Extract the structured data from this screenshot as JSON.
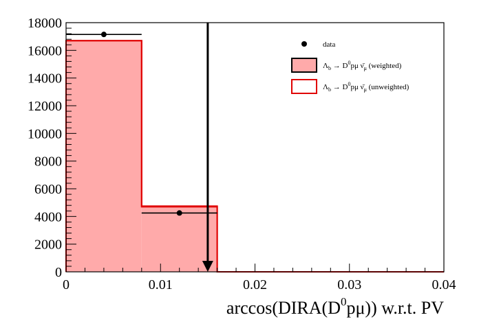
{
  "chart_data": {
    "type": "bar",
    "title": "",
    "xlabel": {
      "main": "arccos(DIRA(D",
      "sup": "0",
      "tail": "pμ)) w.r.t. PV"
    },
    "ylabel": "",
    "xlim": [
      0,
      0.04
    ],
    "ylim": [
      0,
      18000
    ],
    "x_ticks": [
      {
        "value": 0,
        "label": "0"
      },
      {
        "value": 0.01,
        "label": "0.01"
      },
      {
        "value": 0.02,
        "label": "0.02"
      },
      {
        "value": 0.03,
        "label": "0.03"
      },
      {
        "value": 0.04,
        "label": "0.04"
      }
    ],
    "y_ticks": [
      {
        "value": 0,
        "label": "0"
      },
      {
        "value": 2000,
        "label": "2000"
      },
      {
        "value": 4000,
        "label": "4000"
      },
      {
        "value": 6000,
        "label": "6000"
      },
      {
        "value": 8000,
        "label": "8000"
      },
      {
        "value": 10000,
        "label": "10000"
      },
      {
        "value": 12000,
        "label": "12000"
      },
      {
        "value": 14000,
        "label": "14000"
      },
      {
        "value": 16000,
        "label": "16000"
      },
      {
        "value": 18000,
        "label": "18000"
      }
    ],
    "bin_edges": [
      0,
      0.008,
      0.016,
      0.024,
      0.032,
      0.04
    ],
    "series": [
      {
        "name": "Λ_b → D^0 pμ ν̄_μ (weighted)",
        "kind": "hist-filled",
        "values": [
          16700,
          4700,
          0,
          0,
          0
        ],
        "fill_color": "#ffaaaa",
        "line_color": "#e00000"
      },
      {
        "name": "Λ_b → D^0 pμ ν̄_μ (unweighted)",
        "kind": "hist-outline",
        "values": [
          16700,
          4750,
          0,
          0,
          0
        ],
        "line_color": "#e00000"
      },
      {
        "name": "data",
        "kind": "points",
        "x": [
          0.004,
          0.012
        ],
        "y": [
          17150,
          4250
        ],
        "color": "#000000"
      }
    ],
    "cut_line": {
      "x": 0.015,
      "direction": "down"
    },
    "legend": {
      "placement": "top-right",
      "entries": [
        {
          "key": "data",
          "symbol": "marker",
          "text": "data"
        },
        {
          "key": "weighted",
          "symbol": "box-filled",
          "text_prefix": "Λ",
          "text_sub1": "b",
          "text_arrow": " → D",
          "text_sup": "0",
          "text_mid": "pμ ν̄",
          "text_sub2": "μ",
          "text_suffix": " (weighted)"
        },
        {
          "key": "unweighted",
          "symbol": "box-outline",
          "text_prefix": "Λ",
          "text_sub1": "b",
          "text_arrow": " → D",
          "text_sup": "0",
          "text_mid": "pμ ν̄",
          "text_sub2": "μ",
          "text_suffix": " (unweighted)"
        }
      ]
    },
    "grid": false
  }
}
